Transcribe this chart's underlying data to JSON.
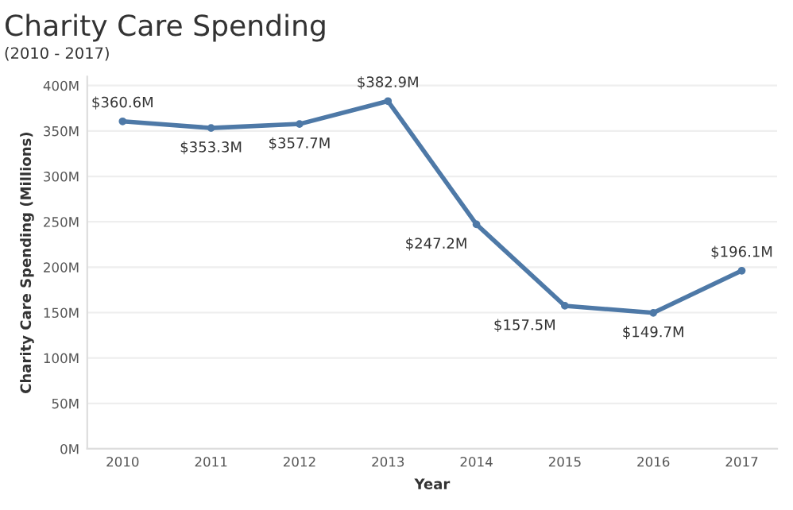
{
  "chart_data": {
    "type": "line",
    "title": "Charity Care Spending",
    "subtitle": "(2010 - 2017)",
    "xlabel": "Year",
    "ylabel": "Charity Care Spending (Millions)",
    "categories": [
      "2010",
      "2011",
      "2012",
      "2013",
      "2014",
      "2015",
      "2016",
      "2017"
    ],
    "series": [
      {
        "color": "#4e79a7",
        "values": [
          360.6,
          353.3,
          357.7,
          382.9,
          247.2,
          157.5,
          149.7,
          196.1
        ],
        "value_labels": [
          "$360.6M",
          "$353.3M",
          "$357.7M",
          "$382.9M",
          "$247.2M",
          "$157.5M",
          "$149.7M",
          "$196.1M"
        ]
      }
    ],
    "ylim": [
      0,
      410
    ],
    "yticks": [
      {
        "value": 0,
        "label": "0M"
      },
      {
        "value": 50,
        "label": "50M"
      },
      {
        "value": 100,
        "label": "100M"
      },
      {
        "value": 150,
        "label": "150M"
      },
      {
        "value": 200,
        "label": "200M"
      },
      {
        "value": 250,
        "label": "250M"
      },
      {
        "value": 300,
        "label": "300M"
      },
      {
        "value": 350,
        "label": "350M"
      },
      {
        "value": 400,
        "label": "400M"
      }
    ],
    "grid": "y",
    "marker": "circle",
    "line_style": "solid"
  }
}
